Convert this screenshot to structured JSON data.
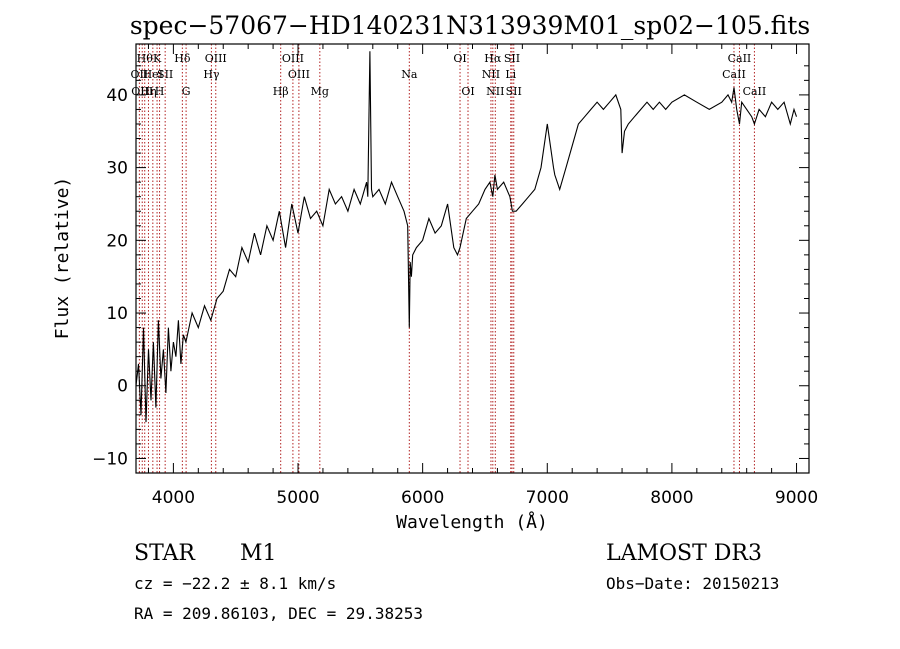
{
  "chart_data": {
    "type": "line",
    "title": "spec−57067−HD140231N313939M01_sp02−105.fits",
    "xlabel": "Wavelength (Å)",
    "ylabel": "Flux (relative)",
    "xlim": [
      3700,
      9100
    ],
    "ylim": [
      -12,
      47
    ],
    "xticks": [
      4000,
      5000,
      6000,
      7000,
      8000,
      9000
    ],
    "yticks": [
      -10,
      0,
      10,
      20,
      30,
      40
    ],
    "grid": false,
    "series": [
      {
        "name": "flux",
        "x": [
          3700,
          3720,
          3740,
          3760,
          3780,
          3800,
          3820,
          3840,
          3860,
          3880,
          3900,
          3920,
          3940,
          3960,
          3980,
          4000,
          4020,
          4040,
          4060,
          4080,
          4100,
          4150,
          4200,
          4250,
          4300,
          4350,
          4400,
          4450,
          4500,
          4550,
          4600,
          4650,
          4700,
          4750,
          4800,
          4850,
          4900,
          4950,
          5000,
          5050,
          5100,
          5150,
          5200,
          5250,
          5300,
          5350,
          5400,
          5450,
          5500,
          5550,
          5560,
          5577,
          5590,
          5600,
          5650,
          5700,
          5750,
          5800,
          5850,
          5880,
          5893,
          5900,
          5910,
          5920,
          5950,
          6000,
          6050,
          6100,
          6150,
          6200,
          6250,
          6280,
          6300,
          6350,
          6400,
          6450,
          6500,
          6540,
          6563,
          6580,
          6600,
          6650,
          6700,
          6720,
          6750,
          6800,
          6850,
          6900,
          6950,
          7000,
          7050,
          7060,
          7100,
          7150,
          7200,
          7250,
          7300,
          7350,
          7400,
          7450,
          7500,
          7550,
          7590,
          7600,
          7620,
          7650,
          7700,
          7750,
          7800,
          7850,
          7900,
          7950,
          8000,
          8100,
          8200,
          8300,
          8400,
          8450,
          8480,
          8498,
          8520,
          8542,
          8560,
          8600,
          8640,
          8662,
          8700,
          8750,
          8800,
          8850,
          8900,
          8950,
          8980,
          9000
        ],
        "values": [
          0,
          3,
          -4,
          8,
          -5,
          5,
          -2,
          6,
          -3,
          9,
          1,
          5,
          -1,
          8,
          2,
          6,
          4,
          9,
          3,
          7,
          6,
          10,
          8,
          11,
          9,
          12,
          13,
          16,
          15,
          19,
          17,
          21,
          18,
          22,
          20,
          24,
          19,
          25,
          21,
          26,
          23,
          24,
          22,
          27,
          25,
          26,
          24,
          27,
          25,
          28,
          26,
          46,
          27,
          26,
          27,
          25,
          28,
          26,
          24,
          22,
          8,
          17,
          15,
          18,
          19,
          20,
          23,
          21,
          22,
          25,
          19,
          18,
          19,
          23,
          24,
          25,
          27,
          28,
          26,
          29,
          27,
          28,
          26,
          24,
          24,
          25,
          26,
          27,
          30,
          36,
          30,
          29,
          27,
          30,
          33,
          36,
          37,
          38,
          39,
          38,
          39,
          40,
          38,
          32,
          35,
          36,
          37,
          38,
          39,
          38,
          39,
          38,
          39,
          40,
          39,
          38,
          39,
          40,
          39,
          41,
          38,
          36,
          39,
          38,
          37,
          36,
          38,
          37,
          39,
          38,
          39,
          36,
          38,
          37
        ]
      }
    ],
    "line_labels": [
      {
        "wave": 3727,
        "label": "OII",
        "row": 1
      },
      {
        "wave": 3750,
        "label": "OIII",
        "row": 2
      },
      {
        "wave": 3770,
        "label": "Hθ",
        "row": 0
      },
      {
        "wave": 3800,
        "label": "Hη",
        "row": 2
      },
      {
        "wave": 3835,
        "label": "HeI",
        "row": 1
      },
      {
        "wave": 3869,
        "label": "K",
        "row": 0
      },
      {
        "wave": 3889,
        "label": "H",
        "row": 2
      },
      {
        "wave": 3934,
        "label": "SII",
        "row": 1
      },
      {
        "wave": 4072,
        "label": "Hδ",
        "row": 0
      },
      {
        "wave": 4102,
        "label": "G",
        "row": 2
      },
      {
        "wave": 4305,
        "label": "Hγ",
        "row": 1
      },
      {
        "wave": 4340,
        "label": "OIII",
        "row": 0
      },
      {
        "wave": 4861,
        "label": "Hβ",
        "row": 2
      },
      {
        "wave": 4959,
        "label": "OIII",
        "row": 0
      },
      {
        "wave": 5007,
        "label": "OIII",
        "row": 1
      },
      {
        "wave": 5175,
        "label": "Mg",
        "row": 2
      },
      {
        "wave": 5893,
        "label": "Na",
        "row": 1
      },
      {
        "wave": 6300,
        "label": "OI",
        "row": 0
      },
      {
        "wave": 6364,
        "label": "OI",
        "row": 2
      },
      {
        "wave": 6548,
        "label": "NII",
        "row": 1
      },
      {
        "wave": 6563,
        "label": "Hα",
        "row": 0
      },
      {
        "wave": 6583,
        "label": "NII",
        "row": 2
      },
      {
        "wave": 6707,
        "label": "Li",
        "row": 1
      },
      {
        "wave": 6717,
        "label": "SII",
        "row": 0
      },
      {
        "wave": 6731,
        "label": "SII",
        "row": 2
      },
      {
        "wave": 8498,
        "label": "CaII",
        "row": 1
      },
      {
        "wave": 8542,
        "label": "CaII",
        "row": 0
      },
      {
        "wave": 8662,
        "label": "CaII",
        "row": 2
      }
    ]
  },
  "info": {
    "class": "STAR",
    "subclass": "M1",
    "survey": "LAMOST DR3",
    "cz": "cz = −22.2 ± 8.1 km/s",
    "obs_date": "Obs−Date: 20150213",
    "radec": "RA = 209.86103, DEC =  29.38253"
  }
}
